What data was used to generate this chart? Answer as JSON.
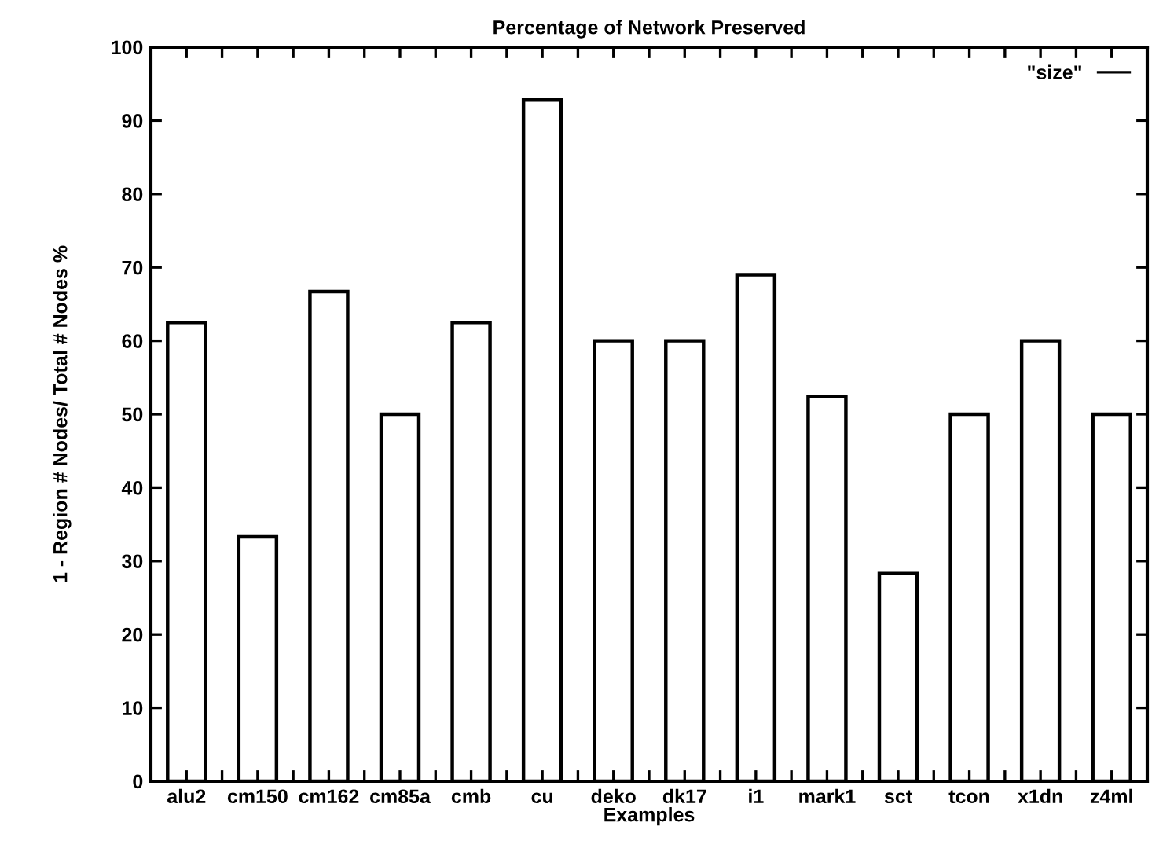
{
  "chart_data": {
    "type": "bar",
    "title": "Percentage of Network Preserved",
    "xlabel": "Examples",
    "ylabel": "1 - Region # Nodes/ Total # Nodes %",
    "categories": [
      "alu2",
      "cm150",
      "cm162",
      "cm85a",
      "cmb",
      "cu",
      "deko",
      "dk17",
      "i1",
      "mark1",
      "sct",
      "tcon",
      "x1dn",
      "z4ml"
    ],
    "series": [
      {
        "name": "\"size\"",
        "color": "#000000",
        "values": [
          62.5,
          33.3,
          66.7,
          50,
          62.5,
          92.8,
          60,
          60,
          69,
          52.4,
          28.3,
          50,
          60,
          50
        ]
      }
    ],
    "ylim": [
      0,
      100
    ],
    "yticks": [
      0,
      10,
      20,
      30,
      40,
      50,
      60,
      70,
      80,
      90,
      100
    ],
    "grid": false,
    "legend": "top right"
  }
}
